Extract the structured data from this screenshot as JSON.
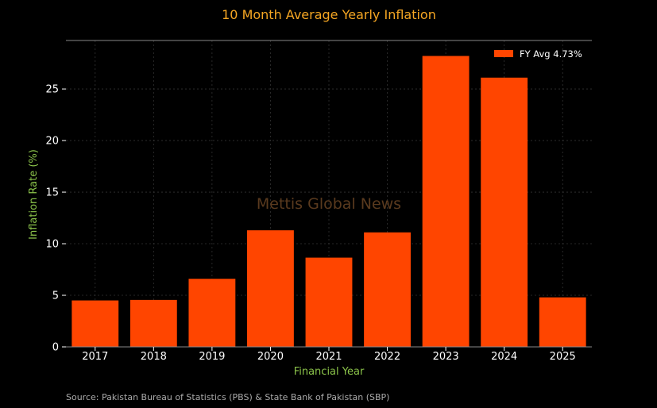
{
  "colors": {
    "background": "#000000",
    "bar": "#FF4500",
    "title": "#F5A623",
    "axis_label": "#8BC34A",
    "tick_label": "#FFFFFF",
    "grid": "#333333",
    "watermark": "#5A3A1E",
    "source": "#AAAAAA",
    "axis_line": "#888888"
  },
  "watermark": "Mettis Global News",
  "source": "Source: Pakistan Bureau of Statistics (PBS) & State Bank of Pakistan (SBP)",
  "chart_data": {
    "type": "bar",
    "title": "10 Month Average Yearly Inflation",
    "xlabel": "Financial Year",
    "ylabel": "Inflation Rate (%)",
    "categories": [
      "2017",
      "2018",
      "2019",
      "2020",
      "2021",
      "2022",
      "2023",
      "2024",
      "2025"
    ],
    "series": [
      {
        "name": "FY Avg 4.73%",
        "values": [
          4.5,
          4.55,
          6.6,
          11.3,
          8.65,
          11.1,
          28.2,
          26.1,
          4.8
        ]
      }
    ],
    "ylim": [
      0,
      29.7
    ],
    "yticks": [
      0,
      5,
      10,
      15,
      20,
      25
    ],
    "grid": true,
    "legend_position": "top-right"
  }
}
